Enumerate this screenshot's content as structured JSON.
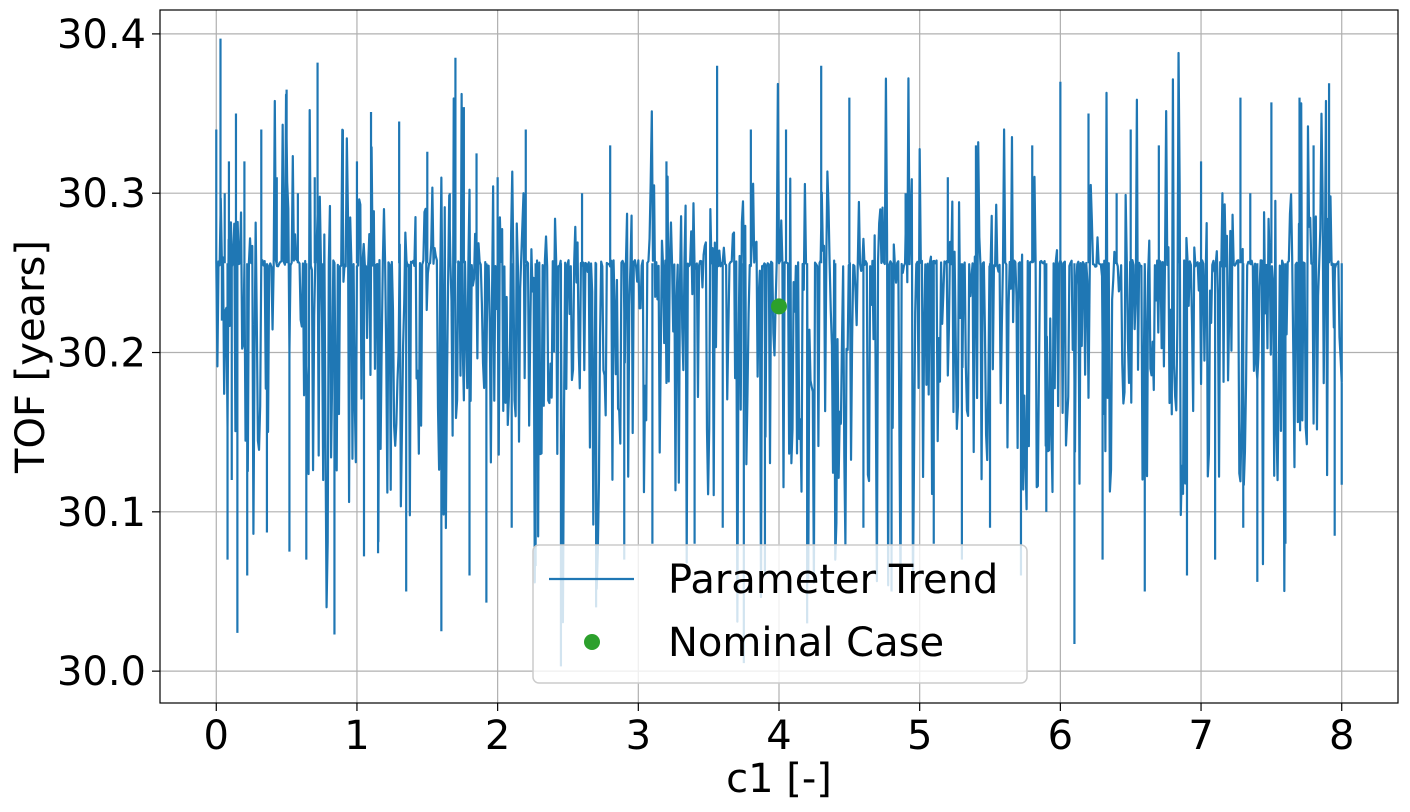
{
  "chart_data": {
    "type": "line",
    "xlabel": "c1 [-]",
    "ylabel": "TOF [years]",
    "xlim": [
      -0.4,
      8.4
    ],
    "ylim": [
      29.98,
      30.415
    ],
    "x_ticks": [
      0,
      1,
      2,
      3,
      4,
      5,
      6,
      7,
      8
    ],
    "x_tick_labels": [
      "0",
      "1",
      "2",
      "3",
      "4",
      "5",
      "6",
      "7",
      "8"
    ],
    "y_ticks": [
      30.0,
      30.1,
      30.2,
      30.3,
      30.4
    ],
    "y_tick_labels": [
      "30.0",
      "30.1",
      "30.2",
      "30.3",
      "30.4"
    ],
    "grid": true,
    "legend_placement": "lower-center",
    "series": [
      {
        "name": "Parameter Trend",
        "kind": "line",
        "color": "#1f77b4",
        "x_range": [
          0,
          8
        ],
        "baseline": 30.256,
        "min": 30.003,
        "max": 30.397,
        "samples": 1000,
        "x": [
          0.0,
          0.02,
          0.03,
          0.04,
          0.06,
          0.08,
          0.09,
          0.11,
          0.14,
          0.15,
          0.2,
          0.22,
          0.25,
          0.32,
          0.36,
          0.43,
          0.5,
          0.52,
          0.58,
          0.64,
          0.7,
          0.72,
          0.76,
          0.84,
          0.9,
          1.0,
          1.05,
          1.1,
          1.15,
          1.2,
          1.3,
          1.35,
          1.5,
          1.6,
          1.66,
          1.7,
          1.76,
          1.8,
          1.85,
          1.92,
          2.0,
          2.1,
          2.2,
          2.27,
          2.4,
          2.45,
          2.6,
          2.7,
          2.8,
          2.9,
          3.0,
          3.1,
          3.2,
          3.4,
          3.56,
          3.6,
          3.75,
          3.8,
          3.9,
          4.0,
          4.05,
          4.2,
          4.3,
          4.4,
          4.5,
          4.6,
          4.7,
          4.8,
          4.9,
          5.0,
          5.1,
          5.2,
          5.3,
          5.4,
          5.5,
          5.6,
          5.72,
          5.8,
          5.86,
          5.9,
          6.0,
          6.1,
          6.2,
          6.3,
          6.4,
          6.5,
          6.6,
          6.7,
          6.84,
          6.9,
          7.0,
          7.1,
          7.2,
          7.28,
          7.3,
          7.35,
          7.4,
          7.5,
          7.6,
          7.7,
          7.8,
          7.91,
          7.95,
          8.0
        ],
        "y": [
          30.34,
          30.256,
          30.397,
          30.22,
          30.3,
          30.07,
          30.32,
          30.12,
          30.35,
          30.024,
          30.32,
          30.06,
          30.26,
          30.34,
          30.087,
          30.31,
          30.365,
          30.075,
          30.3,
          30.07,
          30.31,
          30.382,
          30.12,
          30.023,
          30.34,
          30.32,
          30.072,
          30.351,
          30.074,
          30.256,
          30.345,
          30.05,
          30.326,
          30.025,
          30.3,
          30.385,
          30.354,
          30.06,
          30.325,
          30.043,
          30.31,
          30.09,
          30.34,
          30.066,
          30.2,
          30.003,
          30.3,
          30.04,
          30.33,
          30.07,
          30.256,
          30.08,
          30.32,
          30.08,
          30.38,
          30.09,
          30.005,
          30.34,
          30.06,
          30.256,
          30.34,
          30.03,
          30.38,
          30.07,
          30.36,
          30.09,
          30.256,
          30.05,
          30.3,
          30.32,
          30.08,
          30.31,
          30.07,
          30.33,
          30.09,
          30.34,
          30.06,
          30.33,
          30.256,
          30.1,
          30.37,
          30.017,
          30.35,
          30.07,
          30.3,
          30.34,
          30.05,
          30.33,
          30.388,
          30.06,
          30.32,
          30.07,
          30.256,
          30.36,
          30.09,
          30.3,
          30.056,
          30.357,
          30.08,
          30.36,
          30.33,
          30.369,
          30.085,
          30.117
        ]
      },
      {
        "name": "Nominal Case",
        "kind": "point",
        "color": "#2ca02c",
        "points": [
          {
            "x": 4.0,
            "y": 30.229
          }
        ]
      }
    ]
  }
}
